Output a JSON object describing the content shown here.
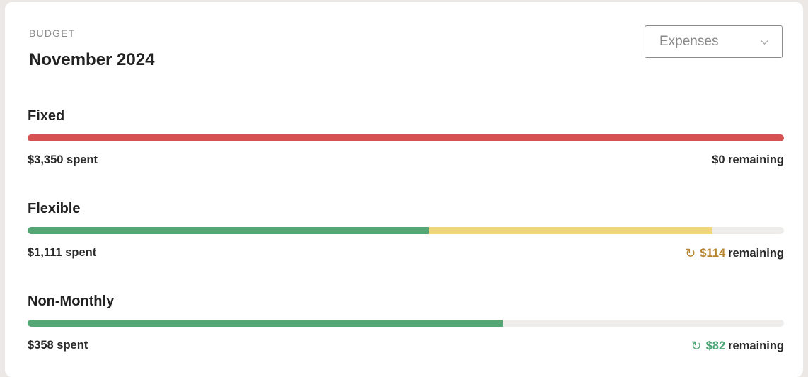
{
  "header": {
    "eyebrow": "BUDGET",
    "title": "November 2024"
  },
  "selector": {
    "value": "Expenses",
    "icon": "chevron-down-icon"
  },
  "colors": {
    "red": "#d65252",
    "green": "#54a775",
    "yellow": "#f0d57a",
    "track": "#efedeb",
    "amber": "#b8832e",
    "green_text": "#4fa779"
  },
  "groups": [
    {
      "name": "Fixed",
      "spent": "$3,350 spent",
      "remaining_amount": "",
      "remaining_label": "$0 remaining",
      "segments": [
        {
          "color": "#d65252",
          "fraction": 1.0
        }
      ],
      "icon": null
    },
    {
      "name": "Flexible",
      "spent": "$1,111 spent",
      "remaining_amount": "$114",
      "remaining_label": "remaining",
      "segments": [
        {
          "color": "#54a775",
          "fraction": 0.53
        },
        {
          "color": "#f0d57a",
          "fraction": 0.375
        }
      ],
      "icon": "refresh-icon",
      "amount_color": "#b8832e"
    },
    {
      "name": "Non-Monthly",
      "spent": "$358 spent",
      "remaining_amount": "$82",
      "remaining_label": "remaining",
      "segments": [
        {
          "color": "#54a775",
          "fraction": 0.629
        }
      ],
      "icon": "refresh-icon",
      "amount_color": "#4fa779"
    }
  ]
}
